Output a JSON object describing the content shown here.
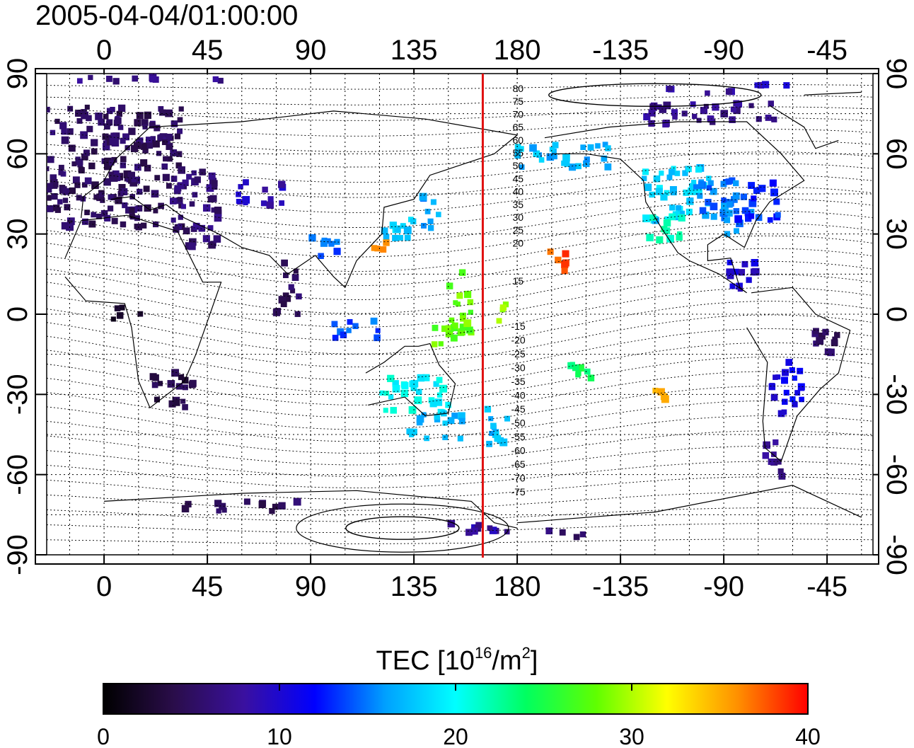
{
  "timestamp": "2005-04-04/01:00:00",
  "lon_ticks": [
    "0",
    "45",
    "90",
    "135",
    "180",
    "-135",
    "-90",
    "-45"
  ],
  "lat_ticks": [
    "90",
    "60",
    "30",
    "0",
    "-30",
    "-60",
    "-90"
  ],
  "contour_labels_north": [
    "80",
    "75",
    "70",
    "65",
    "60",
    "55",
    "50",
    "45",
    "40",
    "35",
    "30",
    "25",
    "20",
    "15"
  ],
  "contour_labels_south": [
    "-15",
    "-20",
    "-25",
    "-30",
    "-35",
    "-40",
    "-45",
    "-50",
    "-55",
    "-60",
    "-65",
    "-70",
    "-75"
  ],
  "colorbar": {
    "title_main": "TEC  [10",
    "title_exp1": "16",
    "title_mid": "/m",
    "title_exp2": "2",
    "title_end": "]",
    "tick_labels": [
      "0",
      "10",
      "20",
      "30",
      "40"
    ],
    "min": 0,
    "max": 40,
    "colors": [
      "#000000",
      "#2a0d4a",
      "#3a10a0",
      "#0000ff",
      "#00a0ff",
      "#00ffff",
      "#00ff60",
      "#60ff00",
      "#ffff00",
      "#ff9000",
      "#ff0000"
    ]
  },
  "meridian_marker": {
    "lon": 165,
    "color": "#e01010"
  },
  "tec_patches": [
    {
      "lon": 5,
      "lat": 55,
      "w": 60,
      "h": 45,
      "tec": 5
    },
    {
      "lon": 40,
      "lat": 40,
      "w": 20,
      "h": 30,
      "tec": 6
    },
    {
      "lon": 15,
      "lat": 68,
      "w": 30,
      "h": 10,
      "tec": 5
    },
    {
      "lon": 30,
      "lat": -28,
      "w": 18,
      "h": 14,
      "tec": 4
    },
    {
      "lon": 10,
      "lat": 0,
      "w": 12,
      "h": 6,
      "tec": 3
    },
    {
      "lon": 68,
      "lat": 45,
      "w": 20,
      "h": 10,
      "tec": 9
    },
    {
      "lon": 80,
      "lat": 10,
      "w": 10,
      "h": 20,
      "tec": 5
    },
    {
      "lon": 128,
      "lat": 33,
      "w": 14,
      "h": 12,
      "tec": 18
    },
    {
      "lon": 120,
      "lat": 25,
      "w": 6,
      "h": 4,
      "tec": 36
    },
    {
      "lon": 142,
      "lat": 38,
      "w": 8,
      "h": 14,
      "tec": 16
    },
    {
      "lon": 155,
      "lat": 5,
      "w": 10,
      "h": 25,
      "tec": 28
    },
    {
      "lon": 148,
      "lat": -8,
      "w": 12,
      "h": 10,
      "tec": 28
    },
    {
      "lon": 135,
      "lat": -30,
      "w": 30,
      "h": 14,
      "tec": 20
    },
    {
      "lon": 145,
      "lat": -42,
      "w": 24,
      "h": 10,
      "tec": 17
    },
    {
      "lon": 172,
      "lat": -42,
      "w": 12,
      "h": 14,
      "tec": 17
    },
    {
      "lon": 175,
      "lat": 0,
      "w": 6,
      "h": 8,
      "tec": 30
    },
    {
      "lon": 198,
      "lat": 20,
      "w": 10,
      "h": 8,
      "tec": 38
    },
    {
      "lon": 200,
      "lat": 60,
      "w": 40,
      "h": 10,
      "tec": 17
    },
    {
      "lon": -110,
      "lat": 45,
      "w": 30,
      "h": 20,
      "tec": 18
    },
    {
      "lon": -90,
      "lat": 40,
      "w": 25,
      "h": 20,
      "tec": 15
    },
    {
      "lon": -75,
      "lat": 42,
      "w": 18,
      "h": 15,
      "tec": 13
    },
    {
      "lon": -115,
      "lat": 32,
      "w": 15,
      "h": 10,
      "tec": 22
    },
    {
      "lon": -95,
      "lat": 75,
      "w": 60,
      "h": 8,
      "tec": 7
    },
    {
      "lon": -80,
      "lat": 15,
      "w": 15,
      "h": 12,
      "tec": 10
    },
    {
      "lon": -62,
      "lat": -28,
      "w": 15,
      "h": 20,
      "tec": 11
    },
    {
      "lon": -45,
      "lat": -10,
      "w": 15,
      "h": 10,
      "tec": 5
    },
    {
      "lon": -68,
      "lat": -55,
      "w": 8,
      "h": 15,
      "tec": 7
    },
    {
      "lon": -118,
      "lat": -30,
      "w": 6,
      "h": 4,
      "tec": 34
    },
    {
      "lon": 60,
      "lat": -72,
      "w": 50,
      "h": 4,
      "tec": 5
    },
    {
      "lon": 160,
      "lat": -80,
      "w": 40,
      "h": 4,
      "tec": 8
    },
    {
      "lon": 200,
      "lat": -82,
      "w": 20,
      "h": 3,
      "tec": 6
    },
    {
      "lon": 20,
      "lat": 88,
      "w": 70,
      "h": 2,
      "tec": 7
    },
    {
      "lon": -100,
      "lat": 83,
      "w": 30,
      "h": 3,
      "tec": 8
    },
    {
      "lon": -70,
      "lat": 86,
      "w": 20,
      "h": 2,
      "tec": 9
    },
    {
      "lon": 110,
      "lat": -5,
      "w": 20,
      "h": 8,
      "tec": 14
    },
    {
      "lon": 95,
      "lat": 25,
      "w": 14,
      "h": 8,
      "tec": 14
    },
    {
      "lon": 210,
      "lat": -22,
      "w": 14,
      "h": 8,
      "tec": 24
    }
  ]
}
